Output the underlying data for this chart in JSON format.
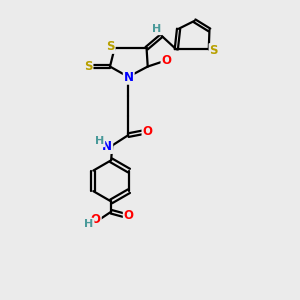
{
  "bg_color": "#ebebeb",
  "bond_color": "#000000",
  "bond_width": 1.6,
  "atom_colors": {
    "S": "#b8a000",
    "N": "#0000ff",
    "O": "#ff0000",
    "H": "#4a9a9a",
    "C": "#000000"
  },
  "font_size": 8.5,
  "title": "",
  "xlim": [
    0,
    10
  ],
  "ylim": [
    0,
    13
  ]
}
